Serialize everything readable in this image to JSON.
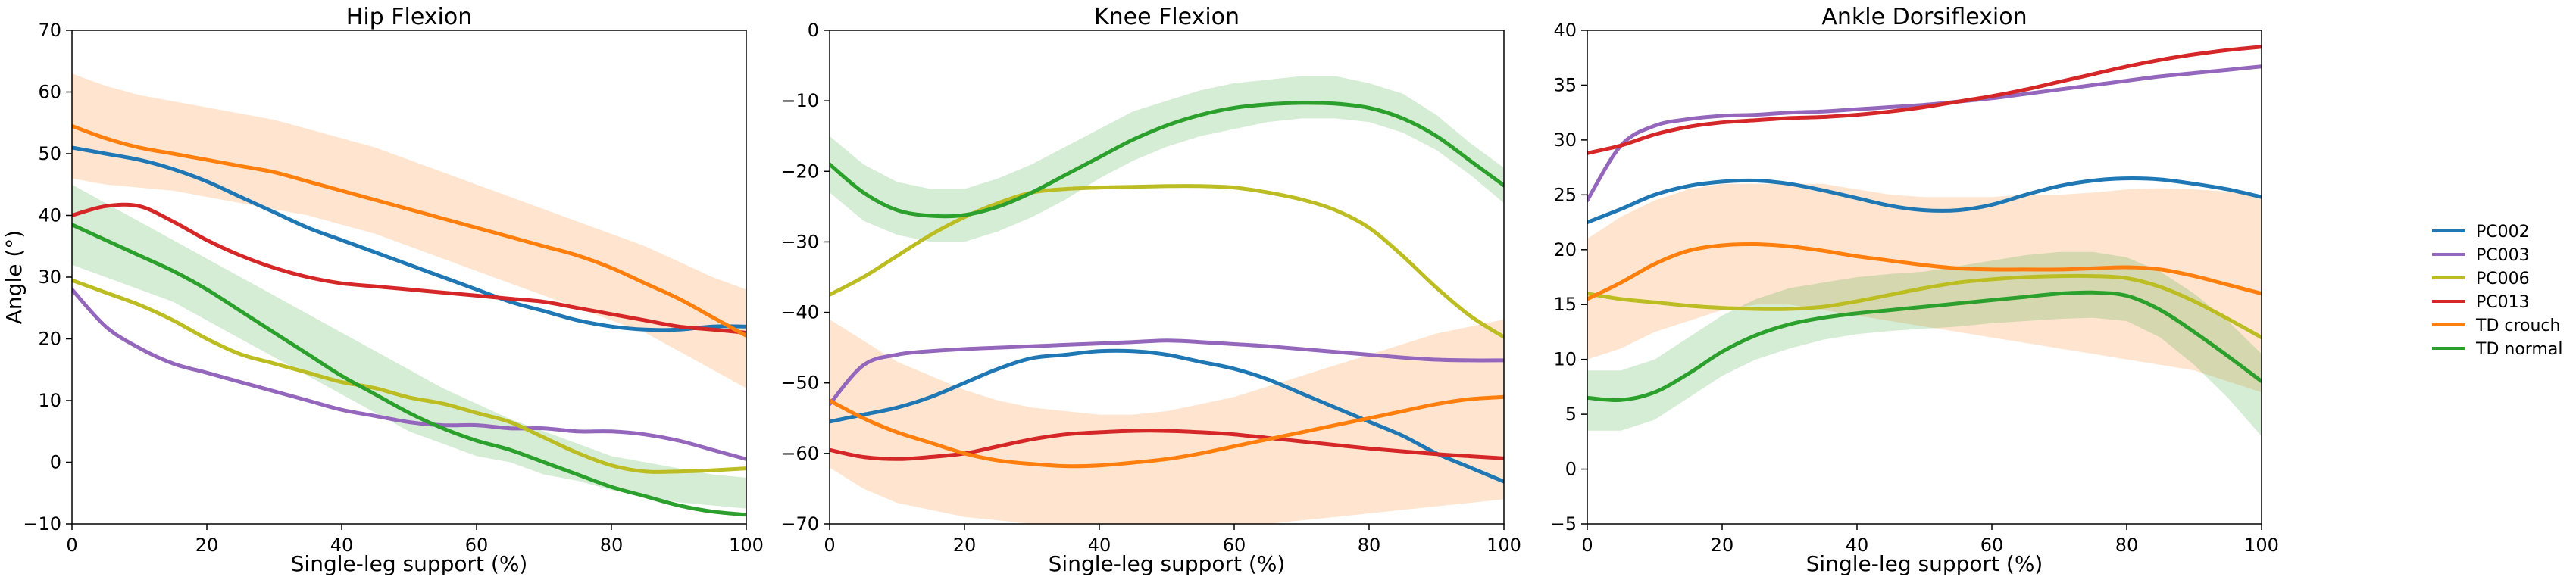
{
  "figure": {
    "background": "#ffffff"
  },
  "chart_data": [
    {
      "type": "line",
      "title": "Hip Flexion",
      "xlabel": "Single-leg support (%)",
      "ylabel": "Angle (°)",
      "xlim": [
        0,
        100
      ],
      "ylim": [
        -10,
        70
      ],
      "xticks": [
        0,
        20,
        40,
        60,
        80,
        100
      ],
      "yticks": [
        -10,
        0,
        10,
        20,
        30,
        40,
        50,
        60,
        70
      ],
      "x": [
        0,
        5,
        10,
        15,
        20,
        25,
        30,
        35,
        40,
        45,
        50,
        55,
        60,
        65,
        70,
        75,
        80,
        85,
        90,
        95,
        100
      ],
      "bands": [
        {
          "series": "TD crouch",
          "color": "#ff7f0e",
          "lower": [
            46,
            45,
            44.5,
            44,
            43,
            42,
            41,
            40,
            38.5,
            37,
            35,
            33,
            31,
            29,
            27,
            25,
            23,
            21,
            18,
            15,
            12
          ],
          "upper": [
            63,
            61,
            59.5,
            58.5,
            57.5,
            56.5,
            55.5,
            54,
            52.5,
            51,
            49,
            47,
            45,
            43,
            41,
            39,
            37,
            35,
            32.5,
            30,
            28
          ]
        },
        {
          "series": "TD normal",
          "color": "#2ca02c",
          "lower": [
            32,
            30,
            28,
            26,
            23,
            20,
            17,
            14,
            11,
            8,
            5,
            3,
            1,
            0,
            -2,
            -3,
            -4.5,
            -5.5,
            -6.5,
            -7,
            -7.5
          ],
          "upper": [
            45,
            42,
            39,
            36,
            33,
            30,
            27,
            24,
            21,
            18,
            15,
            12,
            9.5,
            7,
            5,
            3,
            1,
            0,
            -1,
            -2,
            -2.5
          ]
        }
      ],
      "series": [
        {
          "name": "PC002",
          "color": "#1f77b4",
          "values": [
            51,
            50,
            49,
            47.5,
            45.5,
            43,
            40.5,
            38,
            36,
            34,
            32,
            30,
            28,
            26,
            24.5,
            23,
            22,
            21.5,
            21.5,
            22,
            22
          ]
        },
        {
          "name": "PC003",
          "color": "#9467bd",
          "values": [
            28,
            22,
            18.5,
            16,
            14.5,
            13,
            11.5,
            10,
            8.5,
            7.5,
            6.5,
            6,
            6,
            5.5,
            5.5,
            5,
            5,
            4.5,
            3.5,
            2,
            0.5
          ]
        },
        {
          "name": "PC006",
          "color": "#bcbd22",
          "values": [
            29.5,
            27.5,
            25.5,
            23,
            20,
            17.5,
            16,
            14.5,
            13,
            12,
            10.5,
            9.5,
            8,
            6.5,
            4,
            1.5,
            -0.5,
            -1.5,
            -1.5,
            -1.3,
            -1
          ]
        },
        {
          "name": "PC013",
          "color": "#d62728",
          "values": [
            40,
            41.5,
            41.5,
            39,
            36,
            33.5,
            31.5,
            30,
            29,
            28.5,
            28,
            27.5,
            27,
            26.5,
            26,
            25,
            24,
            23,
            22,
            21.5,
            21
          ]
        },
        {
          "name": "TD crouch",
          "color": "#ff7f0e",
          "values": [
            54.5,
            52.5,
            51,
            50,
            49,
            48,
            47,
            45.5,
            44,
            42.5,
            41,
            39.5,
            38,
            36.5,
            35,
            33.5,
            31.5,
            29,
            26.5,
            23.5,
            20.5
          ]
        },
        {
          "name": "TD normal",
          "color": "#2ca02c",
          "values": [
            38.5,
            36,
            33.5,
            31,
            28,
            24.5,
            21,
            17.5,
            14,
            11,
            8,
            5.5,
            3.5,
            2,
            0,
            -2,
            -4,
            -5.5,
            -7,
            -8,
            -8.5
          ]
        }
      ]
    },
    {
      "type": "line",
      "title": "Knee Flexion",
      "xlabel": "Single-leg support (%)",
      "ylabel": "",
      "xlim": [
        0,
        100
      ],
      "ylim": [
        -70,
        0
      ],
      "xticks": [
        0,
        20,
        40,
        60,
        80,
        100
      ],
      "yticks": [
        -70,
        -60,
        -50,
        -40,
        -30,
        -20,
        -10,
        0
      ],
      "x": [
        0,
        5,
        10,
        15,
        20,
        25,
        30,
        35,
        40,
        45,
        50,
        55,
        60,
        65,
        70,
        75,
        80,
        85,
        90,
        95,
        100
      ],
      "bands": [
        {
          "series": "TD crouch",
          "color": "#ff7f0e",
          "lower": [
            -62,
            -65,
            -67,
            -68,
            -69,
            -69.5,
            -70,
            -70,
            -70,
            -70,
            -70,
            -70,
            -70,
            -70,
            -69.5,
            -69,
            -68.5,
            -68,
            -67.5,
            -67,
            -66.5
          ],
          "upper": [
            -41,
            -44,
            -47,
            -49,
            -51,
            -52.5,
            -53.5,
            -54,
            -54.5,
            -54.5,
            -54,
            -53,
            -52,
            -50.5,
            -49,
            -47.5,
            -46,
            -44.5,
            -43,
            -42,
            -41
          ]
        },
        {
          "series": "TD normal",
          "color": "#2ca02c",
          "lower": [
            -23,
            -27,
            -29,
            -30,
            -30,
            -28.5,
            -26.5,
            -24,
            -21,
            -18.5,
            -16.5,
            -15,
            -14,
            -13,
            -12.5,
            -12.5,
            -13,
            -14.5,
            -17,
            -20.5,
            -24.5
          ]
        },
        {
          "series": "TD normal upper",
          "color": "#2ca02c",
          "upper": [
            -15,
            -19,
            -21.5,
            -22.5,
            -22.5,
            -21,
            -19,
            -16.5,
            -14,
            -11.5,
            -10,
            -8.5,
            -7.5,
            -7,
            -6.5,
            -6.5,
            -7.5,
            -9,
            -12,
            -16,
            -19.5
          ]
        }
      ],
      "series": [
        {
          "name": "PC002",
          "color": "#1f77b4",
          "values": [
            -55.5,
            -54.5,
            -53.5,
            -52,
            -50,
            -48,
            -46.5,
            -46,
            -45.5,
            -45.5,
            -46,
            -47,
            -48,
            -49.5,
            -51.5,
            -53.5,
            -55.5,
            -57.5,
            -60,
            -62,
            -64
          ]
        },
        {
          "name": "PC003",
          "color": "#9467bd",
          "values": [
            -53,
            -47.5,
            -46,
            -45.5,
            -45.2,
            -45,
            -44.8,
            -44.6,
            -44.4,
            -44.2,
            -44,
            -44.2,
            -44.5,
            -44.8,
            -45.2,
            -45.6,
            -46,
            -46.4,
            -46.7,
            -46.8,
            -46.8
          ]
        },
        {
          "name": "PC006",
          "color": "#bcbd22",
          "values": [
            -37.5,
            -35,
            -32,
            -29,
            -26.5,
            -24.5,
            -23,
            -22.5,
            -22.3,
            -22.2,
            -22.1,
            -22.1,
            -22.3,
            -23,
            -24,
            -25.5,
            -28,
            -32,
            -36.5,
            -40.5,
            -43.5
          ]
        },
        {
          "name": "PC013",
          "color": "#d62728",
          "values": [
            -59.5,
            -60.5,
            -60.8,
            -60.5,
            -60,
            -59,
            -58,
            -57.3,
            -57,
            -56.8,
            -56.8,
            -57,
            -57.3,
            -57.8,
            -58.3,
            -58.8,
            -59.3,
            -59.7,
            -60.1,
            -60.4,
            -60.7
          ]
        },
        {
          "name": "TD crouch",
          "color": "#ff7f0e",
          "values": [
            -52.5,
            -55,
            -57,
            -58.5,
            -60,
            -61,
            -61.5,
            -61.8,
            -61.7,
            -61.3,
            -60.8,
            -60,
            -59,
            -58,
            -57,
            -56,
            -55,
            -54,
            -53,
            -52.3,
            -52
          ]
        },
        {
          "name": "TD normal",
          "color": "#2ca02c",
          "values": [
            -19,
            -23,
            -25.5,
            -26.3,
            -26.2,
            -25,
            -23,
            -20.5,
            -18,
            -15.5,
            -13.5,
            -12,
            -11,
            -10.5,
            -10.3,
            -10.4,
            -11,
            -12.5,
            -15,
            -18.5,
            -22
          ]
        }
      ]
    },
    {
      "type": "line",
      "title": "Ankle Dorsiflexion",
      "xlabel": "Single-leg support (%)",
      "ylabel": "",
      "xlim": [
        0,
        100
      ],
      "ylim": [
        -5,
        40
      ],
      "xticks": [
        0,
        20,
        40,
        60,
        80,
        100
      ],
      "yticks": [
        -5,
        0,
        5,
        10,
        15,
        20,
        25,
        30,
        35,
        40
      ],
      "x": [
        0,
        5,
        10,
        15,
        20,
        25,
        30,
        35,
        40,
        45,
        50,
        55,
        60,
        65,
        70,
        75,
        80,
        85,
        90,
        95,
        100
      ],
      "bands": [
        {
          "series": "TD crouch",
          "color": "#ff7f0e",
          "lower": [
            10,
            11,
            12.5,
            13.5,
            14.5,
            15,
            15,
            14.5,
            14,
            13.5,
            13,
            12.5,
            12,
            11.5,
            11,
            10.5,
            10,
            9.5,
            9,
            8,
            7
          ],
          "upper": [
            21,
            23,
            24.5,
            25.5,
            26,
            26,
            26,
            26,
            25.5,
            25,
            24.8,
            24.8,
            24.8,
            25,
            25,
            25.2,
            25.5,
            25.6,
            25.5,
            25.3,
            25
          ]
        },
        {
          "series": "TD normal",
          "color": "#2ca02c",
          "lower": [
            3.5,
            3.5,
            4.5,
            6.5,
            8.5,
            10,
            11,
            11.8,
            12.3,
            12.6,
            12.8,
            13,
            13.3,
            13.5,
            13.7,
            13.8,
            13.5,
            12,
            9.5,
            6.5,
            3
          ],
          "upper": [
            9,
            9,
            10,
            12,
            14,
            15.5,
            16.5,
            17,
            17.5,
            17.8,
            18,
            18.5,
            19,
            19.5,
            19.8,
            19.8,
            19.3,
            18,
            16,
            13.5,
            10.5
          ]
        }
      ],
      "series": [
        {
          "name": "PC002",
          "color": "#1f77b4",
          "values": [
            22.5,
            23.7,
            25,
            25.8,
            26.2,
            26.3,
            26,
            25.4,
            24.7,
            24,
            23.6,
            23.6,
            24.1,
            25,
            25.8,
            26.3,
            26.5,
            26.4,
            26,
            25.5,
            24.8
          ]
        },
        {
          "name": "PC003",
          "color": "#9467bd",
          "values": [
            24.5,
            29.5,
            31.3,
            31.9,
            32.2,
            32.3,
            32.5,
            32.6,
            32.8,
            33,
            33.2,
            33.5,
            33.8,
            34.2,
            34.6,
            35,
            35.4,
            35.8,
            36.1,
            36.4,
            36.7
          ]
        },
        {
          "name": "PC013",
          "color": "#d62728",
          "values": [
            28.8,
            29.5,
            30.5,
            31.2,
            31.6,
            31.8,
            32,
            32.1,
            32.3,
            32.6,
            33,
            33.5,
            34,
            34.6,
            35.3,
            36,
            36.7,
            37.3,
            37.8,
            38.2,
            38.5
          ]
        },
        {
          "name": "PC006",
          "color": "#bcbd22",
          "values": [
            16,
            15.5,
            15.2,
            14.9,
            14.7,
            14.6,
            14.6,
            14.8,
            15.3,
            15.9,
            16.5,
            17,
            17.3,
            17.5,
            17.6,
            17.6,
            17.4,
            16.6,
            15.3,
            13.7,
            12
          ]
        },
        {
          "name": "TD crouch",
          "color": "#ff7f0e",
          "values": [
            15.5,
            17,
            18.7,
            19.9,
            20.4,
            20.5,
            20.3,
            19.9,
            19.4,
            19,
            18.6,
            18.3,
            18.2,
            18.2,
            18.2,
            18.3,
            18.4,
            18.2,
            17.6,
            16.8,
            16
          ]
        },
        {
          "name": "TD normal",
          "color": "#2ca02c",
          "values": [
            6.5,
            6.3,
            7,
            8.7,
            10.7,
            12.2,
            13.2,
            13.8,
            14.2,
            14.5,
            14.8,
            15.1,
            15.4,
            15.7,
            16,
            16.1,
            15.8,
            14.5,
            12.5,
            10.3,
            8
          ]
        }
      ]
    }
  ],
  "legend": {
    "placement": "right",
    "entries": [
      {
        "name": "PC002",
        "color": "#1f77b4"
      },
      {
        "name": "PC003",
        "color": "#9467bd"
      },
      {
        "name": "PC006",
        "color": "#bcbd22"
      },
      {
        "name": "PC013",
        "color": "#d62728"
      },
      {
        "name": "TD crouch",
        "color": "#ff7f0e"
      },
      {
        "name": "TD normal",
        "color": "#2ca02c"
      }
    ]
  }
}
